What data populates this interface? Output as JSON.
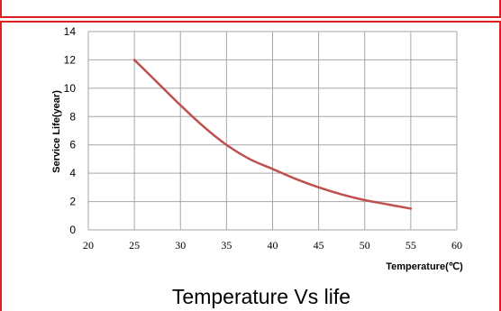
{
  "chart_data": {
    "type": "line",
    "title": "Temperature Vs life",
    "xlabel": "Temperature(℃)",
    "ylabel": "Service Life(year)",
    "xlim": [
      20,
      60
    ],
    "ylim": [
      0,
      14
    ],
    "xticks": [
      20,
      25,
      30,
      35,
      40,
      45,
      50,
      55,
      60
    ],
    "yticks": [
      0,
      2,
      4,
      6,
      8,
      10,
      12,
      14
    ],
    "grid": true,
    "legend": "none",
    "series": [
      {
        "color": "#c0504d",
        "x": [
          25,
          27.5,
          30,
          32.5,
          35,
          37.5,
          40,
          42.5,
          45,
          47.5,
          50,
          52.5,
          55
        ],
        "y": [
          12.0,
          10.4,
          8.8,
          7.3,
          6.0,
          5.0,
          4.3,
          3.6,
          3.0,
          2.5,
          2.1,
          1.8,
          1.5
        ]
      }
    ]
  },
  "colors": {
    "frame": "#e02020",
    "grid": "#a6a6a6",
    "series": "#c0504d"
  }
}
